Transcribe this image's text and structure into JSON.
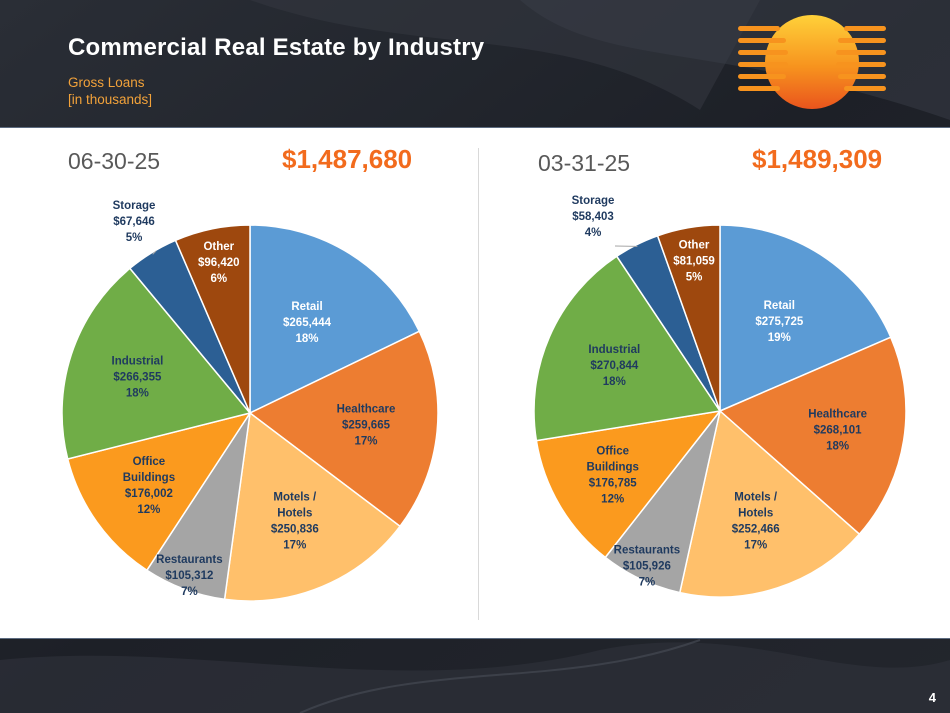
{
  "title": "Commercial Real Estate by Industry",
  "subtitle_line1": "Gross Loans",
  "subtitle_line2": "[in thousands]",
  "page_number": "4",
  "colors": {
    "Retail": "#5b9bd5",
    "Healthcare": "#ed7d31",
    "Motels / Hotels": "#ffc06b",
    "Restaurants": "#a5a5a5",
    "Office Buildings": "#fb9a1e",
    "Industrial": "#70ad47",
    "Storage": "#2c5f94",
    "Other": "#9e480e",
    "total_text": "#f26b1d"
  },
  "chart_data": [
    {
      "type": "pie",
      "date": "06-30-25",
      "total": "$1,487,680",
      "slices": [
        {
          "label": "Retail",
          "label_lines": [
            "Retail"
          ],
          "value": 265444,
          "value_label": "$265,444",
          "pct": "18%"
        },
        {
          "label": "Healthcare",
          "label_lines": [
            "Healthcare"
          ],
          "value": 259665,
          "value_label": "$259,665",
          "pct": "17%"
        },
        {
          "label": "Motels / Hotels",
          "label_lines": [
            "Motels /",
            "Hotels"
          ],
          "value": 250836,
          "value_label": "$250,836",
          "pct": "17%"
        },
        {
          "label": "Restaurants",
          "label_lines": [
            "Restaurants"
          ],
          "value": 105312,
          "value_label": "$105,312",
          "pct": "7%"
        },
        {
          "label": "Office Buildings",
          "label_lines": [
            "Office",
            "Buildings"
          ],
          "value": 176002,
          "value_label": "$176,002",
          "pct": "12%"
        },
        {
          "label": "Industrial",
          "label_lines": [
            "Industrial"
          ],
          "value": 266355,
          "value_label": "$266,355",
          "pct": "18%"
        },
        {
          "label": "Storage",
          "label_lines": [
            "Storage"
          ],
          "value": 67646,
          "value_label": "$67,646",
          "pct": "5%"
        },
        {
          "label": "Other",
          "label_lines": [
            "Other"
          ],
          "value": 96420,
          "value_label": "$96,420",
          "pct": "6%"
        }
      ]
    },
    {
      "type": "pie",
      "date": "03-31-25",
      "total": "$1,489,309",
      "slices": [
        {
          "label": "Retail",
          "label_lines": [
            "Retail"
          ],
          "value": 275725,
          "value_label": "$275,725",
          "pct": "19%"
        },
        {
          "label": "Healthcare",
          "label_lines": [
            "Healthcare"
          ],
          "value": 268101,
          "value_label": "$268,101",
          "pct": "18%"
        },
        {
          "label": "Motels / Hotels",
          "label_lines": [
            "Motels /",
            "Hotels"
          ],
          "value": 252466,
          "value_label": "$252,466",
          "pct": "17%"
        },
        {
          "label": "Restaurants",
          "label_lines": [
            "Restaurants"
          ],
          "value": 105926,
          "value_label": "$105,926",
          "pct": "7%"
        },
        {
          "label": "Office Buildings",
          "label_lines": [
            "Office",
            "Buildings"
          ],
          "value": 176785,
          "value_label": "$176,785",
          "pct": "12%"
        },
        {
          "label": "Industrial",
          "label_lines": [
            "Industrial"
          ],
          "value": 270844,
          "value_label": "$270,844",
          "pct": "18%"
        },
        {
          "label": "Storage",
          "label_lines": [
            "Storage"
          ],
          "value": 58403,
          "value_label": "$58,403",
          "pct": "4%"
        },
        {
          "label": "Other",
          "label_lines": [
            "Other"
          ],
          "value": 81059,
          "value_label": "$81,059",
          "pct": "5%"
        }
      ]
    }
  ]
}
